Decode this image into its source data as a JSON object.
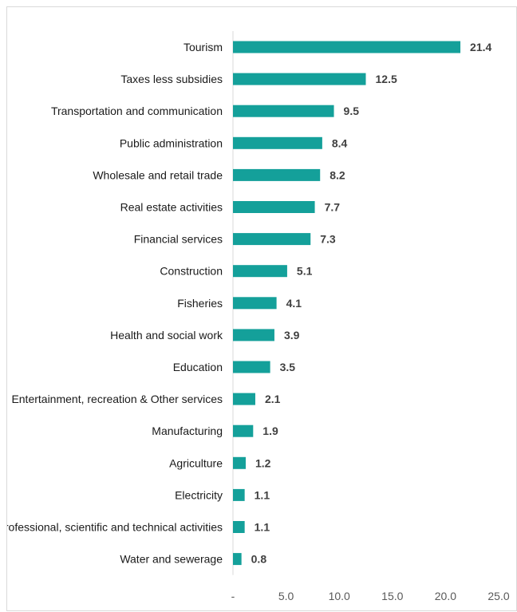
{
  "chart_data": {
    "type": "bar",
    "orientation": "horizontal",
    "categories": [
      "Tourism",
      "Taxes less subsidies",
      "Transportation and communication",
      "Public administration",
      "Wholesale and retail trade",
      "Real estate activities",
      "Financial services",
      "Construction",
      "Fisheries",
      "Health and social work",
      "Education",
      "Entertainment, recreation & Other services",
      "Manufacturing",
      "Agriculture",
      "Electricity",
      "Professional, scientific and technical activities",
      "Water and sewerage"
    ],
    "values": [
      21.4,
      12.5,
      9.5,
      8.4,
      8.2,
      7.7,
      7.3,
      5.1,
      4.1,
      3.9,
      3.5,
      2.1,
      1.9,
      1.2,
      1.1,
      1.1,
      0.8
    ],
    "value_labels": [
      "21.4",
      "12.5",
      "9.5",
      "8.4",
      "8.2",
      "7.7",
      "7.3",
      "5.1",
      "4.1",
      "3.9",
      "3.5",
      "2.1",
      "1.9",
      "1.2",
      "1.1",
      "1.1",
      "0.8"
    ],
    "xlim": [
      0,
      25
    ],
    "x_ticks": [
      0,
      5,
      10,
      15,
      20,
      25
    ],
    "x_tick_labels": [
      "-",
      "5.0",
      "10.0",
      "15.0",
      "20.0",
      "25.0"
    ],
    "title": "",
    "xlabel": "",
    "ylabel": "",
    "grid": false,
    "legend": "none",
    "bar_color": "#14A09A"
  }
}
